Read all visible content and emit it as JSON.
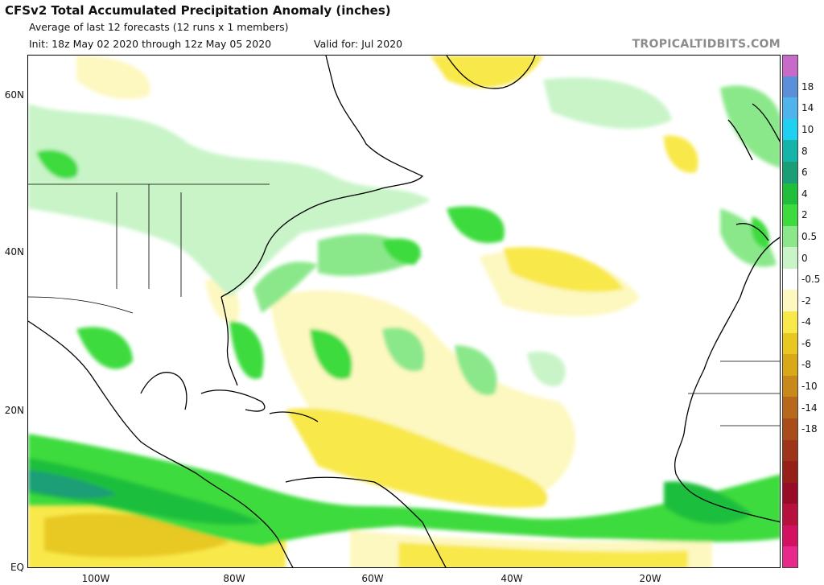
{
  "header": {
    "title": "CFSv2 Total Accumulated Precipitation Anomaly (inches)",
    "line1": "Average of last 12 forecasts (12 runs x 1 members)",
    "init": "Init: 18z May 02 2020 through 12z May 05 2020",
    "valid": "Valid for: Jul 2020",
    "brand": "TROPICALTIDBITS.COM"
  },
  "axes": {
    "lat_labels": [
      "60N",
      "40N",
      "20N",
      "EQ"
    ],
    "lon_labels": [
      "100W",
      "80W",
      "60W",
      "40W",
      "20W"
    ]
  },
  "colorbar": {
    "labels": [
      "18",
      "14",
      "10",
      "8",
      "6",
      "4",
      "2",
      "0.5",
      "0",
      "-0.5",
      "-2",
      "-4",
      "-6",
      "-8",
      "-10",
      "-14",
      "-18"
    ],
    "colors": [
      "#c86bc8",
      "#5b8fd9",
      "#4fb3ec",
      "#1fd0f0",
      "#14b4a8",
      "#1a9e76",
      "#1fbf3c",
      "#3ddb3d",
      "#8ae88a",
      "#c8f4c8",
      "#ffffff",
      "#fdf8c0",
      "#f8e84a",
      "#e8c820",
      "#d9a818",
      "#c8881a",
      "#b8681a",
      "#a84c1a",
      "#9e3418",
      "#962018",
      "#980c28",
      "#b8103c",
      "#d41060",
      "#e8288a"
    ]
  }
}
